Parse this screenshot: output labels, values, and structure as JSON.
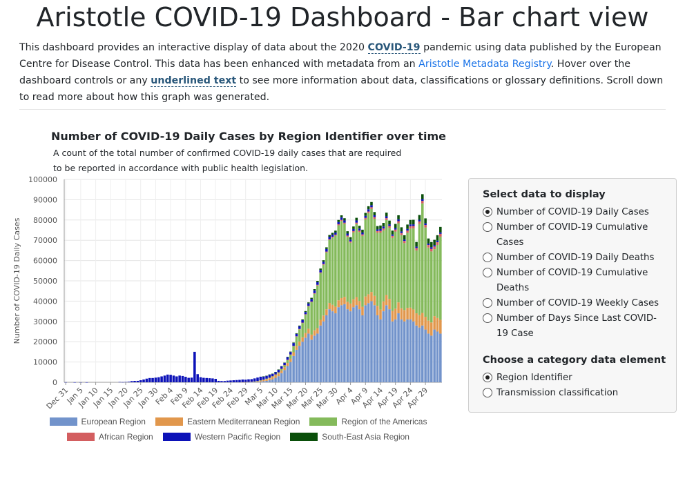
{
  "page": {
    "title": "Aristotle COVID-19 Dashboard - Bar chart view",
    "intro_1": "This dashboard provides an interactive display of data about the 2020 ",
    "intro_term_1": "COVID-19",
    "intro_2": " pandemic using data published by the European Centre for Disease Control. This data has been enhanced with metadata from an ",
    "intro_link": "Aristotle Metadata Registry",
    "intro_3": ". Hover over the dashboard controls or any ",
    "intro_term_2": "underlined text",
    "intro_4": " to see more information about data, classifications or glossary definitions. Scroll down to read more about how this graph was generated."
  },
  "controls": {
    "data_heading": "Select data to display",
    "data_options": [
      {
        "label": "Number of COVID-19 Daily Cases",
        "selected": true
      },
      {
        "label": "Number of COVID-19 Cumulative Cases",
        "selected": false
      },
      {
        "label": "Number of COVID-19 Daily Deaths",
        "selected": false
      },
      {
        "label": "Number of COVID-19 Cumulative Deaths",
        "selected": false
      },
      {
        "label": "Number of COVID-19 Weekly Cases",
        "selected": false
      },
      {
        "label": "Number of Days Since Last COVID-19 Case",
        "selected": false
      }
    ],
    "category_heading": "Choose a category data element",
    "category_options": [
      {
        "label": "Region Identifier",
        "selected": true
      },
      {
        "label": "Transmission classification",
        "selected": false
      }
    ]
  },
  "chart_data": {
    "type": "bar",
    "stacked": true,
    "title": "Number of COVID-19 Daily Cases by Region Identifier over time",
    "subtitle_line1": "A count of the total number of confirmed COVID-19 daily cases that are required",
    "subtitle_line2": "to be reported in accordance with public health legislation.",
    "ylabel": "Number of COVID-19 Daily Cases",
    "xlabel": "",
    "ylim": [
      0,
      100000
    ],
    "y_ticks": [
      "0",
      "10000",
      "20000",
      "30000",
      "40000",
      "50000",
      "60000",
      "70000",
      "80000",
      "90000",
      "100000"
    ],
    "x_tick_labels": [
      "Dec 31",
      "Jan 5",
      "Jan 10",
      "Jan 15",
      "Jan 20",
      "Jan 25",
      "Jan 30",
      "Feb 4",
      "Feb 9",
      "Feb 14",
      "Feb 19",
      "Feb 24",
      "Feb 29",
      "Mar 5",
      "Mar 10",
      "Mar 15",
      "Mar 20",
      "Mar 25",
      "Mar 30",
      "Apr 4",
      "Apr 9",
      "Apr 14",
      "Apr 19",
      "Apr 24",
      "Apr 29"
    ],
    "x_start": "Dec 31",
    "x_end": "May 1",
    "legend_position": "bottom",
    "series": [
      {
        "name": "European Region",
        "color": "#7293cb",
        "values": [
          0,
          0,
          0,
          0,
          0,
          0,
          0,
          0,
          0,
          0,
          0,
          0,
          0,
          0,
          0,
          0,
          0,
          0,
          0,
          0,
          0,
          0,
          0,
          0,
          0,
          0,
          0,
          0,
          0,
          0,
          0,
          0,
          0,
          0,
          0,
          0,
          0,
          0,
          0,
          0,
          0,
          0,
          0,
          0,
          0,
          0,
          0,
          0,
          0,
          0,
          0,
          0,
          0,
          0,
          0,
          0,
          0,
          0,
          0,
          10,
          0,
          20,
          50,
          100,
          200,
          300,
          500,
          700,
          1000,
          1500,
          2200,
          3000,
          4500,
          6000,
          8000,
          10000,
          13000,
          16000,
          18000,
          20000,
          22000,
          24000,
          21000,
          23000,
          24000,
          28000,
          30000,
          33000,
          36000,
          35000,
          34000,
          37000,
          38000,
          38500,
          36000,
          35000,
          37000,
          38000,
          36000,
          33000,
          38000,
          39000,
          40000,
          38000,
          33000,
          31000,
          35000,
          38000,
          36000,
          30000,
          31000,
          34000,
          31000,
          30000,
          31000,
          31000,
          30000,
          28000,
          27000,
          28000,
          26000,
          24000,
          23000,
          26000,
          25000,
          24000
        ]
      },
      {
        "name": "Eastern Mediterranean Region",
        "color": "#e1974c",
        "values": [
          0,
          0,
          0,
          0,
          0,
          0,
          0,
          0,
          0,
          0,
          0,
          0,
          0,
          0,
          0,
          0,
          0,
          0,
          0,
          0,
          0,
          0,
          0,
          0,
          0,
          0,
          0,
          0,
          0,
          0,
          0,
          0,
          0,
          0,
          0,
          0,
          0,
          0,
          0,
          0,
          0,
          0,
          0,
          0,
          0,
          0,
          0,
          0,
          0,
          0,
          0,
          0,
          0,
          0,
          0,
          0,
          0,
          0,
          0,
          50,
          100,
          150,
          200,
          300,
          400,
          600,
          700,
          900,
          1000,
          1100,
          1200,
          1300,
          1300,
          1400,
          1500,
          1600,
          1800,
          2000,
          2100,
          2200,
          2300,
          2400,
          2500,
          2600,
          2700,
          2800,
          2900,
          3000,
          3100,
          3200,
          3300,
          3400,
          3500,
          3600,
          3700,
          3800,
          3900,
          4000,
          4100,
          4200,
          4300,
          4400,
          4500,
          4600,
          4700,
          4800,
          4900,
          5000,
          5100,
          5200,
          5300,
          5400,
          5500,
          5600,
          5700,
          5800,
          5900,
          6000,
          6100,
          6200,
          6300,
          6400,
          6500,
          6600,
          6700,
          6800
        ]
      },
      {
        "name": "Region of the Americas",
        "color": "#84ba5b",
        "values": [
          0,
          0,
          0,
          0,
          0,
          0,
          0,
          0,
          0,
          0,
          0,
          0,
          0,
          0,
          0,
          0,
          0,
          0,
          0,
          0,
          0,
          0,
          0,
          0,
          0,
          0,
          0,
          0,
          0,
          0,
          0,
          0,
          0,
          0,
          0,
          0,
          0,
          0,
          0,
          0,
          0,
          0,
          0,
          0,
          0,
          0,
          0,
          0,
          0,
          0,
          0,
          0,
          0,
          0,
          0,
          0,
          0,
          0,
          0,
          0,
          0,
          0,
          0,
          10,
          30,
          60,
          100,
          200,
          300,
          400,
          500,
          600,
          800,
          1000,
          1500,
          2000,
          3000,
          4500,
          6000,
          7000,
          9000,
          11000,
          16000,
          18000,
          21000,
          23000,
          25000,
          28000,
          31000,
          33000,
          35000,
          37000,
          38000,
          36000,
          32000,
          30000,
          33000,
          36000,
          34000,
          35000,
          38000,
          40000,
          41000,
          38000,
          36000,
          38000,
          35000,
          37000,
          35000,
          36000,
          38000,
          39000,
          36000,
          33000,
          37000,
          39000,
          40000,
          31000,
          45000,
          54000,
          44000,
          36000,
          35000,
          33000,
          36000,
          41000
        ]
      },
      {
        "name": "African Region",
        "color": "#d35e60",
        "values": [
          0,
          0,
          0,
          0,
          0,
          0,
          0,
          0,
          0,
          0,
          0,
          0,
          0,
          0,
          0,
          0,
          0,
          0,
          0,
          0,
          0,
          0,
          0,
          0,
          0,
          0,
          0,
          0,
          0,
          0,
          0,
          0,
          0,
          0,
          0,
          0,
          0,
          0,
          0,
          0,
          0,
          0,
          0,
          0,
          0,
          0,
          0,
          0,
          0,
          0,
          0,
          0,
          0,
          0,
          0,
          0,
          0,
          0,
          0,
          0,
          0,
          0,
          0,
          0,
          0,
          0,
          0,
          0,
          10,
          20,
          30,
          40,
          60,
          80,
          100,
          120,
          150,
          180,
          200,
          220,
          250,
          280,
          300,
          320,
          350,
          380,
          400,
          420,
          450,
          480,
          500,
          520,
          550,
          580,
          600,
          620,
          650,
          680,
          700,
          720,
          750,
          780,
          800,
          820,
          850,
          880,
          900,
          920,
          950,
          980,
          1000,
          1020,
          1050,
          1080,
          1100,
          1120,
          1150,
          1180,
          1200,
          1220,
          1250,
          1280,
          1300,
          1320,
          1350,
          1380,
          1400,
          1420,
          1450,
          1480
        ]
      },
      {
        "name": "Western Pacific Region",
        "color": "#0c12b8",
        "values": [
          27,
          0,
          0,
          17,
          0,
          15,
          0,
          7,
          0,
          0,
          0,
          0,
          0,
          0,
          0,
          0,
          0,
          0,
          140,
          90,
          150,
          280,
          580,
          680,
          700,
          1010,
          1380,
          1800,
          2100,
          2100,
          2300,
          2500,
          2900,
          3300,
          3800,
          3700,
          3300,
          2900,
          3300,
          3100,
          2700,
          2200,
          2300,
          15000,
          4000,
          2500,
          2200,
          2100,
          2000,
          1900,
          1700,
          700,
          600,
          600,
          800,
          900,
          1000,
          1100,
          1200,
          1300,
          1200,
          1300,
          1300,
          1500,
          1700,
          1800,
          1600,
          1400,
          1500,
          1200,
          1100,
          1300,
          1200,
          1100,
          1300,
          1200,
          1400,
          1200,
          1300,
          1200,
          1100,
          1200,
          1300,
          1400,
          1300,
          1200,
          1100,
          1300,
          1200,
          1100,
          1000,
          1100,
          1200,
          1100,
          1000,
          900,
          1000,
          1100,
          1000,
          900,
          1000,
          1100,
          1000,
          900,
          800,
          900,
          1000,
          900,
          800,
          700,
          800,
          900,
          800,
          700,
          800,
          900,
          800,
          700,
          800,
          900,
          800,
          700,
          800,
          700,
          800,
          700,
          800,
          700,
          800,
          900
        ]
      },
      {
        "name": "South-East Asia Region",
        "color": "#0a4f0a",
        "values": [
          0,
          0,
          0,
          0,
          0,
          0,
          0,
          0,
          0,
          0,
          0,
          0,
          0,
          0,
          0,
          0,
          0,
          0,
          0,
          0,
          0,
          0,
          0,
          0,
          0,
          0,
          0,
          0,
          0,
          0,
          0,
          0,
          0,
          0,
          0,
          0,
          0,
          0,
          0,
          0,
          0,
          0,
          0,
          0,
          0,
          0,
          0,
          0,
          0,
          0,
          0,
          0,
          0,
          0,
          0,
          0,
          0,
          0,
          0,
          0,
          0,
          0,
          0,
          0,
          0,
          0,
          10,
          20,
          30,
          40,
          60,
          80,
          100,
          120,
          150,
          200,
          250,
          300,
          350,
          400,
          450,
          500,
          550,
          600,
          650,
          700,
          750,
          800,
          850,
          900,
          950,
          1000,
          1050,
          1100,
          1150,
          1200,
          1250,
          1300,
          1350,
          1400,
          1450,
          1500,
          1550,
          1600,
          1650,
          1700,
          1750,
          1800,
          1850,
          1900,
          1950,
          2000,
          2050,
          2100,
          2150,
          2200,
          2250,
          2300,
          2350,
          2400,
          2450,
          2500,
          2550,
          2600,
          2650,
          2700,
          2750,
          2800
        ]
      }
    ]
  }
}
